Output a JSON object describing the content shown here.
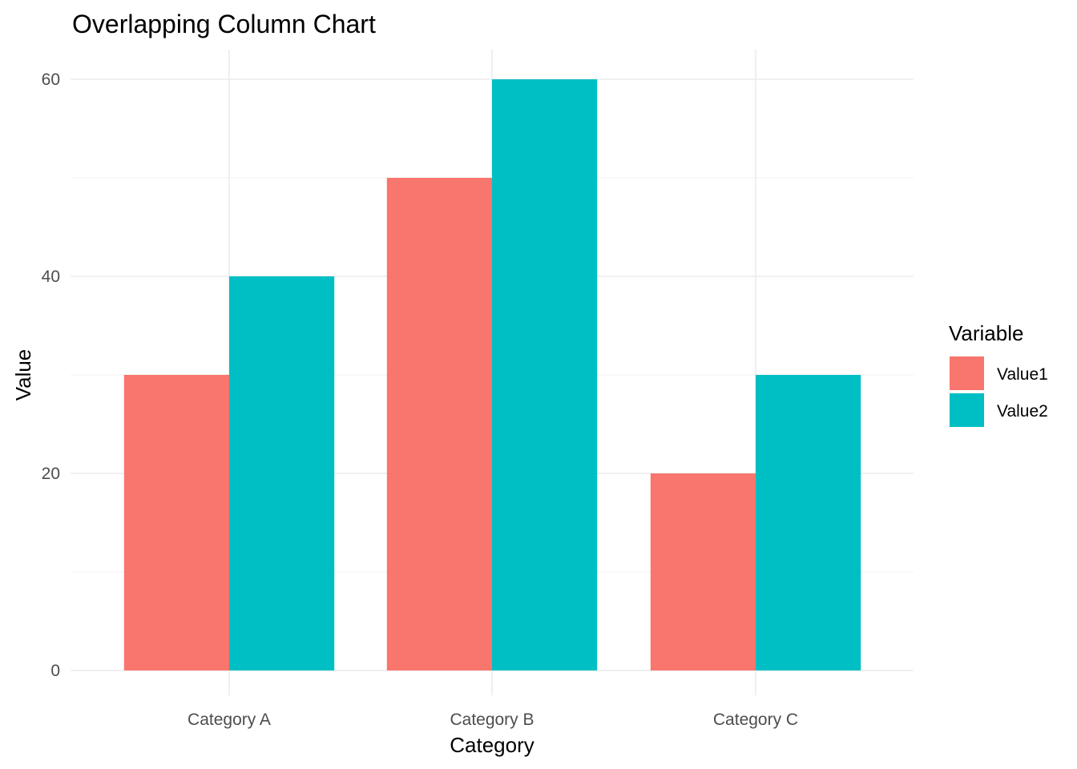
{
  "chart_data": {
    "type": "bar",
    "title": "Overlapping Column Chart",
    "xlabel": "Category",
    "ylabel": "Value",
    "categories": [
      "Category A",
      "Category B",
      "Category C"
    ],
    "series": [
      {
        "name": "Value1",
        "values": [
          30,
          50,
          20
        ],
        "color": "#F8766D"
      },
      {
        "name": "Value2",
        "values": [
          40,
          60,
          30
        ],
        "color": "#00BFC4"
      }
    ],
    "ylim": [
      0,
      63
    ],
    "yticks": [
      0,
      20,
      40,
      60
    ],
    "yticks_minor": [
      10,
      30,
      50
    ],
    "grid": true,
    "legend": {
      "title": "Variable",
      "position": "right"
    }
  }
}
